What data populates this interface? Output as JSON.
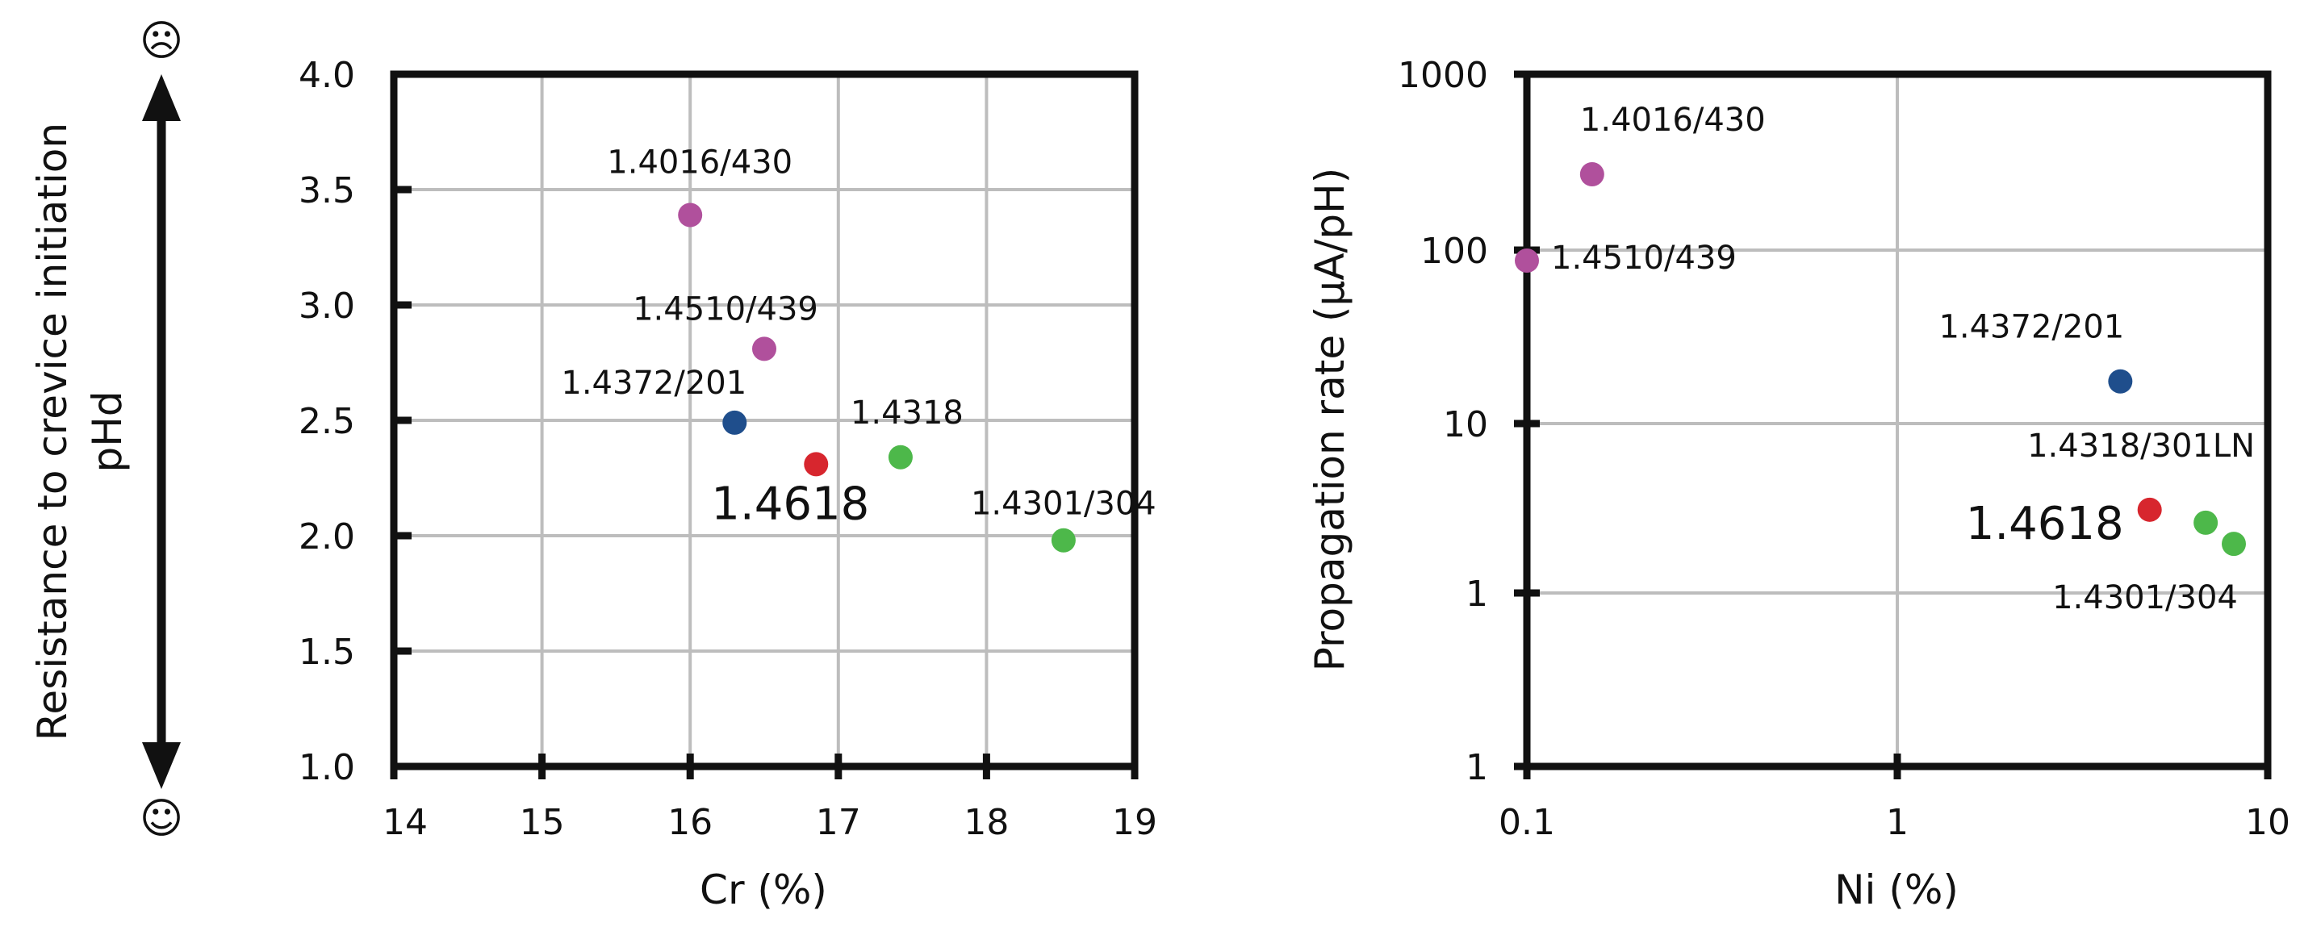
{
  "colors": {
    "ferritic": "#b0509c",
    "manganese": "#1f4e8c",
    "duplex": "#d7262e",
    "austenitic": "#4db84a",
    "grid": "#bdbdbd",
    "frame": "#111111"
  },
  "scale_arrow": {
    "label_line1": "Resistance to crevice initiation",
    "label_line2": "pHd",
    "top_icon": "frown-face-icon",
    "top_symbol": "☹",
    "bottom_icon": "smile-face-icon",
    "bottom_symbol": "☺"
  },
  "chart_data": [
    {
      "type": "scatter",
      "xlabel": "Cr (%)",
      "ylabel": "",
      "xlim": [
        14,
        19
      ],
      "ylim": [
        1.0,
        4.0
      ],
      "x_ticks": [
        "14",
        "15",
        "16",
        "17",
        "18",
        "19"
      ],
      "y_ticks": [
        "1.0",
        "1.5",
        "2.0",
        "2.5",
        "3.0",
        "3.5",
        "4.0"
      ],
      "grid": true,
      "points": [
        {
          "label": "1.4016/430",
          "x": 16.0,
          "y": 3.39,
          "color_key": "ferritic",
          "big": false
        },
        {
          "label": "1.4510/439",
          "x": 16.5,
          "y": 2.81,
          "color_key": "ferritic",
          "big": false
        },
        {
          "label": "1.4372/201",
          "x": 16.3,
          "y": 2.49,
          "color_key": "manganese",
          "big": false
        },
        {
          "label": "1.4618",
          "x": 16.85,
          "y": 2.31,
          "color_key": "duplex",
          "big": true
        },
        {
          "label": "1.4318",
          "x": 17.42,
          "y": 2.34,
          "color_key": "austenitic",
          "big": false
        },
        {
          "label": "1.4301/304",
          "x": 18.52,
          "y": 1.98,
          "color_key": "austenitic",
          "big": false
        }
      ]
    },
    {
      "type": "scatter",
      "xlabel": "Ni (%)",
      "ylabel": "Propagation rate (µA/pH)",
      "x_scale": "log",
      "y_scale": "log",
      "xlim": [
        0.1,
        10
      ],
      "ylim": [
        0.1,
        1000
      ],
      "x_ticks": [
        "0.1",
        "1",
        "10"
      ],
      "y_ticks": [
        "1",
        "1",
        "10",
        "100",
        "1000"
      ],
      "grid": true,
      "points": [
        {
          "label": "1.4016/430",
          "x": 0.15,
          "y": 270,
          "color_key": "ferritic",
          "big": false
        },
        {
          "label": "1.4510/439",
          "x": 0.1,
          "y": 87,
          "color_key": "ferritic",
          "big": false
        },
        {
          "label": "1.4372/201",
          "x": 4.0,
          "y": 17.5,
          "color_key": "manganese",
          "big": false
        },
        {
          "label": "1.4318/301LN",
          "x": 6.8,
          "y": 2.6,
          "color_key": "austenitic",
          "big": false
        },
        {
          "label": "1.4618",
          "x": 4.8,
          "y": 3.1,
          "color_key": "duplex",
          "big": true
        },
        {
          "label": "1.4301/304",
          "x": 8.1,
          "y": 1.95,
          "color_key": "austenitic",
          "big": false
        }
      ]
    }
  ]
}
